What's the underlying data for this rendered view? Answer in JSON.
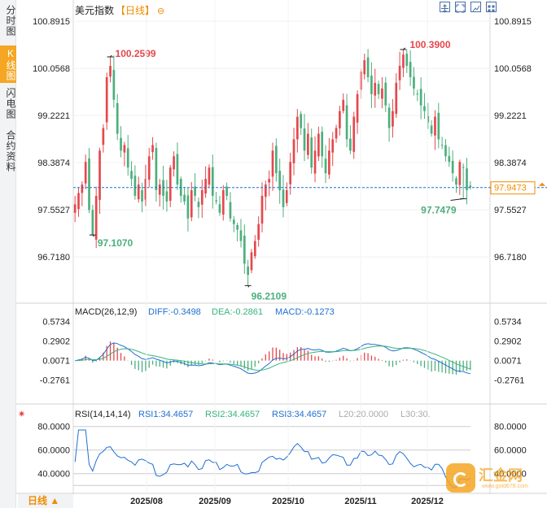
{
  "left_tabs": [
    {
      "label": "分时图",
      "active": false
    },
    {
      "label": "K线图",
      "active": true
    },
    {
      "label": "闪电图",
      "active": false
    },
    {
      "label": "合约资料",
      "active": false
    }
  ],
  "title": {
    "name": "美元指数",
    "period": "【日线】",
    "zoom_icon": "zoom-out-icon"
  },
  "toolbar": [
    "fullscreen-icon",
    "expand-icon",
    "chart-type-icon",
    "settings-grid-icon"
  ],
  "colors": {
    "up": "#e5484d",
    "down": "#4caf7d",
    "last_price_line": "#1f6fd1",
    "last_price_marker": "#f08c00",
    "macd_dif": "#1f6fd1",
    "macd_dea": "#36b37e",
    "rsi": "#1f6fd1"
  },
  "chart_data": [
    {
      "type": "candlestick",
      "title": "美元指数",
      "period": "日线",
      "x_labels": [
        "2025/08",
        "2025/09",
        "2025/10",
        "2025/11",
        "2025/12"
      ],
      "y_ticks": [
        "100.8915",
        "100.0568",
        "99.2221",
        "98.3874",
        "97.5527",
        "96.7180"
      ],
      "ylim": [
        96.13,
        100.95
      ],
      "close": [
        97.65,
        97.85,
        98.0,
        98.4,
        97.55,
        97.1,
        97.8,
        98.6,
        99.0,
        99.9,
        100.1,
        99.5,
        98.9,
        98.6,
        98.7,
        98.3,
        98.1,
        97.8,
        98.0,
        97.7,
        98.1,
        98.5,
        98.7,
        97.9,
        98.0,
        97.8,
        97.7,
        98.3,
        98.5,
        98.0,
        97.8,
        97.7,
        97.4,
        97.9,
        97.8,
        97.6,
        97.9,
        98.1,
        98.3,
        97.8,
        97.7,
        97.5,
        97.9,
        97.8,
        97.4,
        97.3,
        97.2,
        97.0,
        96.6,
        96.4,
        96.8,
        97.0,
        97.3,
        97.8,
        98.0,
        98.1,
        98.6,
        98.2,
        97.9,
        97.6,
        97.9,
        98.4,
        98.8,
        99.2,
        99.0,
        98.6,
        98.9,
        98.3,
        98.6,
        98.9,
        98.5,
        98.2,
        98.6,
        98.8,
        99.0,
        99.3,
        99.5,
        98.8,
        98.6,
        99.2,
        99.6,
        100.0,
        100.2,
        99.9,
        99.6,
        99.8,
        99.6,
        99.7,
        99.4,
        99.0,
        99.3,
        99.8,
        100.1,
        100.3,
        100.1,
        99.9,
        99.7,
        99.6,
        99.4,
        99.3,
        99.1,
        98.9,
        99.2,
        98.8,
        98.7,
        98.5,
        98.4,
        98.2,
        98.0,
        98.4,
        98.3,
        97.9,
        97.95
      ],
      "markers": {
        "highs": [
          {
            "label": "100.2599",
            "value": 100.2599
          },
          {
            "label": "100.3900",
            "value": 100.39
          }
        ],
        "lows": [
          {
            "label": "97.1070",
            "value": 97.107
          },
          {
            "label": "96.2109",
            "value": 96.2109
          },
          {
            "label": "97.7479",
            "value": 97.7479
          }
        ]
      },
      "last_price": {
        "label": "97.9473",
        "value": 97.9473
      }
    },
    {
      "type": "bar+line",
      "indicator": "MACD(26,12,9)",
      "dif_label": "DIFF:-0.3498",
      "dea_label": "DEA:-0.2861",
      "macd_label": "MACD:-0.1273",
      "y_ticks": [
        "0.5734",
        "0.2902",
        "0.0071",
        "-0.2761"
      ],
      "ylim": [
        -0.48,
        0.64
      ]
    },
    {
      "type": "line",
      "indicator": "RSI(14,14,14)",
      "rsi1_label": "RSI1:34.4657",
      "rsi2_label": "RSI2:34.4657",
      "rsi3_label": "RSI3:34.4657",
      "l20_label": "L20:20.0000",
      "l30_label": "L30:30.",
      "y_ticks": [
        "80.0000",
        "60.0000",
        "40.0000"
      ],
      "ylim": [
        26.0,
        86.0
      ],
      "settings_icon": "settings-icon"
    }
  ],
  "footer": {
    "period_selector": "日线 ▲"
  },
  "watermark": {
    "text": "汇金网",
    "url": "www.gold678.com"
  }
}
